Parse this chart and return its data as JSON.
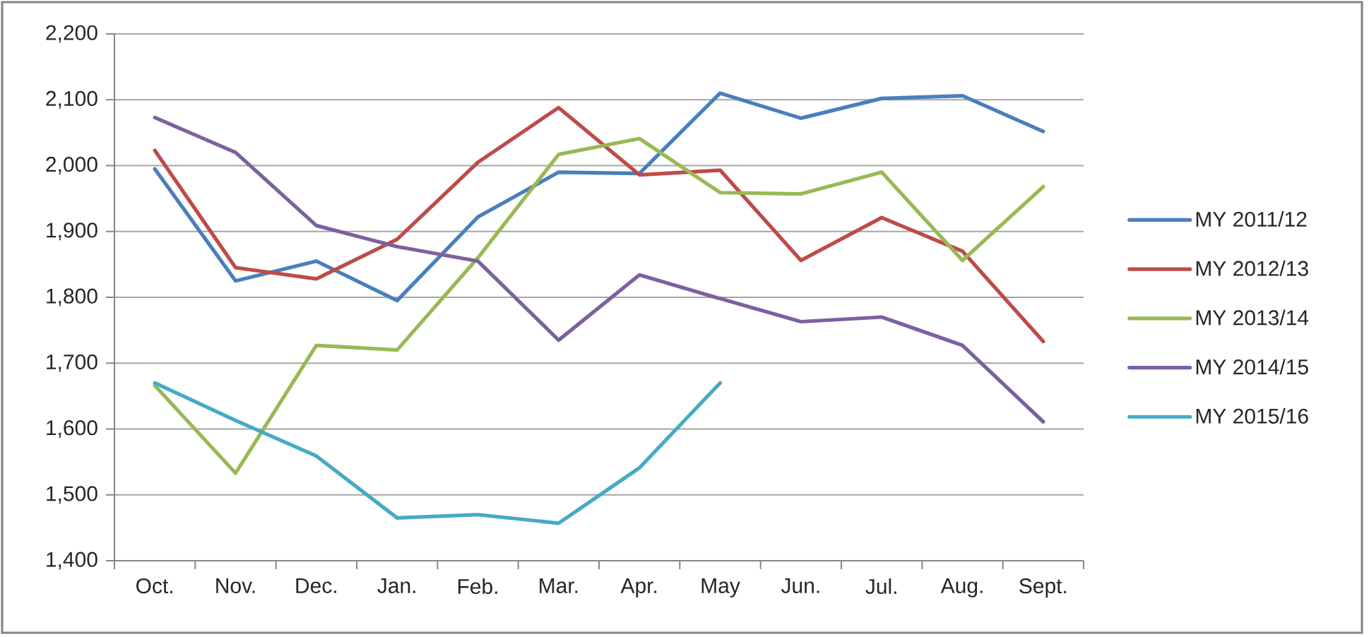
{
  "chart_data": {
    "type": "line",
    "categories": [
      "Oct.",
      "Nov.",
      "Dec.",
      "Jan.",
      "Feb.",
      "Mar.",
      "Apr.",
      "May",
      "Jun.",
      "Jul.",
      "Aug.",
      "Sept."
    ],
    "series": [
      {
        "name": "MY 2011/12",
        "color": "#4a7ebb",
        "values": [
          1995,
          1825,
          1855,
          1795,
          1922,
          1990,
          1988,
          2110,
          2072,
          2102,
          2106,
          2052
        ]
      },
      {
        "name": "MY 2012/13",
        "color": "#be4b48",
        "values": [
          2023,
          1845,
          1828,
          1888,
          2005,
          2088,
          1986,
          1993,
          1856,
          1921,
          1870,
          1733
        ]
      },
      {
        "name": "MY 2013/14",
        "color": "#98b954",
        "values": [
          1666,
          1533,
          1727,
          1720,
          1860,
          2017,
          2041,
          1959,
          1957,
          1990,
          1856,
          1968
        ]
      },
      {
        "name": "MY 2014/15",
        "color": "#7d60a0",
        "values": [
          2073,
          2020,
          1909,
          1877,
          1855,
          1735,
          1834,
          1798,
          1763,
          1770,
          1727,
          1611
        ]
      },
      {
        "name": "MY 2015/16",
        "color": "#46aac5",
        "values": [
          1670,
          1613,
          1559,
          1465,
          1470,
          1457,
          1541,
          1670,
          null,
          null,
          null,
          null
        ]
      }
    ],
    "ylim": [
      1400,
      2200
    ],
    "yticks": [
      {
        "value": 1400,
        "label": "1,400"
      },
      {
        "value": 1500,
        "label": "1,500"
      },
      {
        "value": 1600,
        "label": "1,600"
      },
      {
        "value": 1700,
        "label": "1,700"
      },
      {
        "value": 1800,
        "label": "1,800"
      },
      {
        "value": 1900,
        "label": "1,900"
      },
      {
        "value": 2000,
        "label": "2,000"
      },
      {
        "value": 2100,
        "label": "2,100"
      },
      {
        "value": 2200,
        "label": "2,200"
      }
    ],
    "grid": "y",
    "legend": "right",
    "marker": "none",
    "line_style": "solid"
  }
}
